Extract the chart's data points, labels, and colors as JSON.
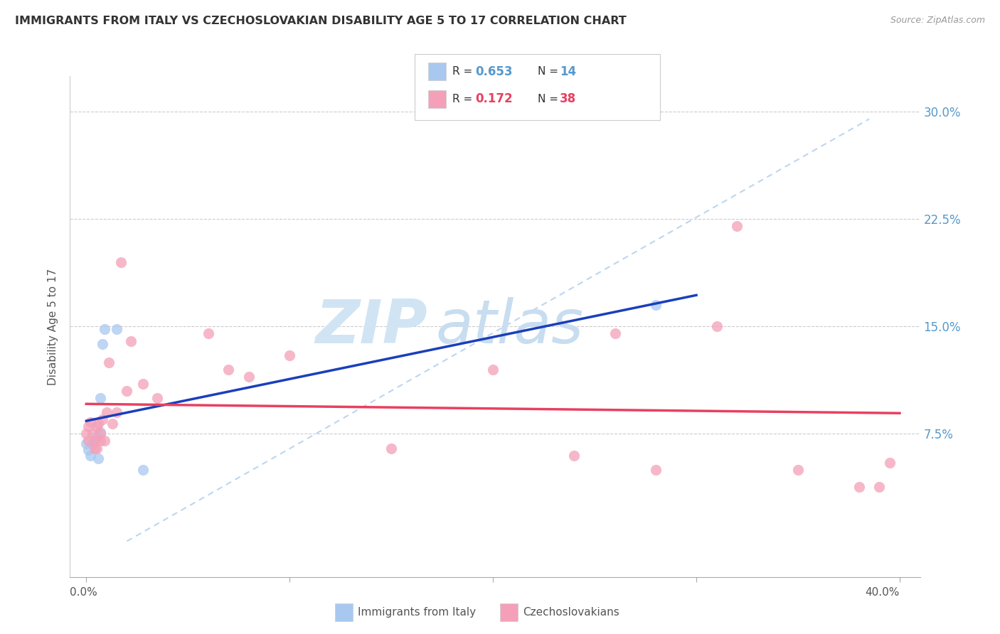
{
  "title": "IMMIGRANTS FROM ITALY VS CZECHOSLOVAKIAN DISABILITY AGE 5 TO 17 CORRELATION CHART",
  "source": "Source: ZipAtlas.com",
  "ylabel": "Disability Age 5 to 17",
  "legend_r1": "0.653",
  "legend_n1": "14",
  "legend_r2": "0.172",
  "legend_n2": "38",
  "legend_label1": "Immigrants from Italy",
  "legend_label2": "Czechoslovakians",
  "color_italy": "#A8C8F0",
  "color_czech": "#F4A0B8",
  "color_italy_line": "#1A3FBB",
  "color_czech_line": "#E84060",
  "color_dashed": "#AACCEE",
  "color_ytick": "#5599CC",
  "watermark_zip": "ZIP",
  "watermark_atlas": "atlas",
  "italy_x": [
    0.0,
    0.001,
    0.002,
    0.003,
    0.004,
    0.005,
    0.006,
    0.007,
    0.007,
    0.008,
    0.009,
    0.015,
    0.028,
    0.28
  ],
  "italy_y": [
    0.068,
    0.064,
    0.06,
    0.068,
    0.07,
    0.073,
    0.058,
    0.076,
    0.1,
    0.138,
    0.148,
    0.148,
    0.05,
    0.165
  ],
  "czech_x": [
    0.0,
    0.001,
    0.001,
    0.002,
    0.003,
    0.004,
    0.004,
    0.005,
    0.005,
    0.006,
    0.007,
    0.007,
    0.008,
    0.009,
    0.01,
    0.011,
    0.013,
    0.015,
    0.017,
    0.02,
    0.022,
    0.028,
    0.035,
    0.06,
    0.07,
    0.08,
    0.1,
    0.15,
    0.2,
    0.24,
    0.26,
    0.28,
    0.31,
    0.32,
    0.35,
    0.38,
    0.39,
    0.395
  ],
  "czech_y": [
    0.075,
    0.08,
    0.07,
    0.083,
    0.075,
    0.065,
    0.07,
    0.08,
    0.065,
    0.082,
    0.075,
    0.07,
    0.085,
    0.07,
    0.09,
    0.125,
    0.082,
    0.09,
    0.195,
    0.105,
    0.14,
    0.11,
    0.1,
    0.145,
    0.12,
    0.115,
    0.13,
    0.065,
    0.12,
    0.06,
    0.145,
    0.05,
    0.15,
    0.22,
    0.05,
    0.038,
    0.038,
    0.055
  ],
  "xlim": [
    -0.008,
    0.41
  ],
  "ylim": [
    -0.025,
    0.325
  ],
  "ytick_vals": [
    0.075,
    0.15,
    0.225,
    0.3
  ],
  "ytick_labels": [
    "7.5%",
    "15.0%",
    "22.5%",
    "30.0%"
  ],
  "xtick_vals": [
    0.0,
    0.1,
    0.2,
    0.3,
    0.4
  ],
  "marker_size": 120
}
